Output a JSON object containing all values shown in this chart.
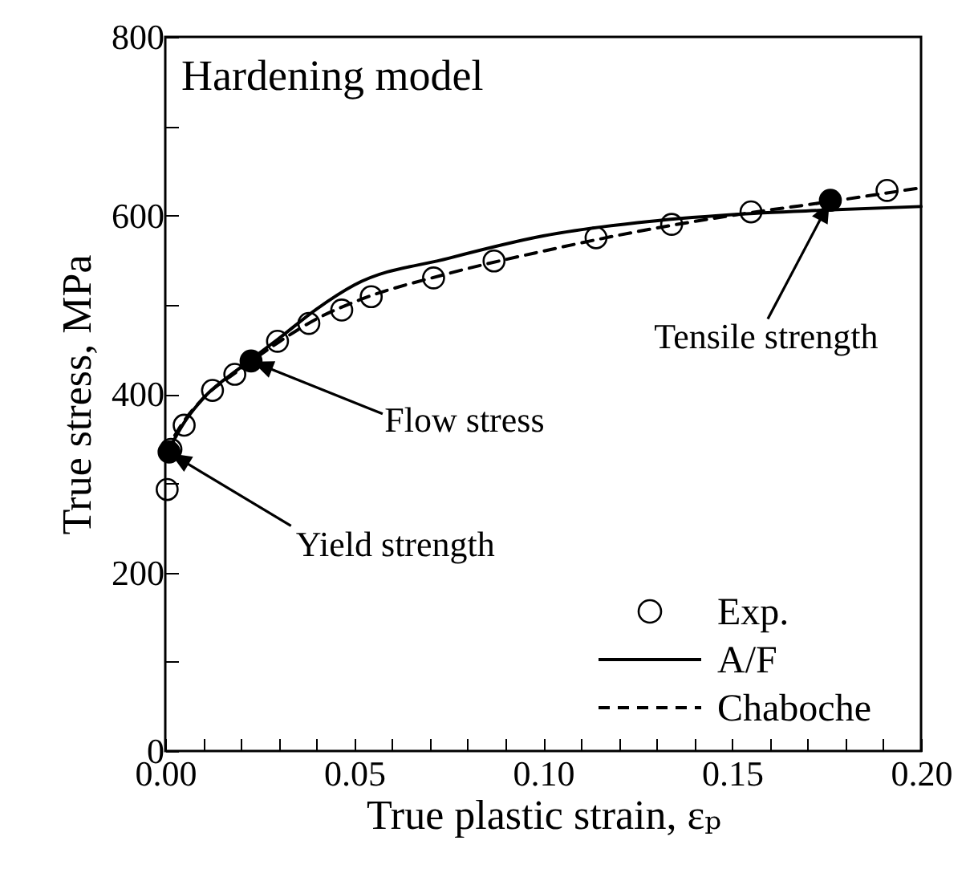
{
  "chart_data": {
    "type": "line",
    "title": "Hardening model",
    "xlabel": "True plastic strain, εₚ",
    "ylabel": "True stress, MPa",
    "xlim": [
      0,
      0.2
    ],
    "ylim": [
      0,
      800
    ],
    "xticks": [
      {
        "value": 0,
        "label": "0.00"
      },
      {
        "value": 0.01,
        "label": null
      },
      {
        "value": 0.02,
        "label": null
      },
      {
        "value": 0.03,
        "label": null
      },
      {
        "value": 0.04,
        "label": null
      },
      {
        "value": 0.05,
        "label": "0.05"
      },
      {
        "value": 0.06,
        "label": null
      },
      {
        "value": 0.07,
        "label": null
      },
      {
        "value": 0.08,
        "label": null
      },
      {
        "value": 0.09,
        "label": null
      },
      {
        "value": 0.1,
        "label": "0.10"
      },
      {
        "value": 0.11,
        "label": null
      },
      {
        "value": 0.12,
        "label": null
      },
      {
        "value": 0.13,
        "label": null
      },
      {
        "value": 0.14,
        "label": null
      },
      {
        "value": 0.15,
        "label": "0.15"
      },
      {
        "value": 0.16,
        "label": null
      },
      {
        "value": 0.17,
        "label": null
      },
      {
        "value": 0.18,
        "label": null
      },
      {
        "value": 0.19,
        "label": null
      },
      {
        "value": 0.2,
        "label": "0.20"
      }
    ],
    "yticks": [
      0,
      {
        "value": 100,
        "label": null
      },
      200,
      {
        "value": 300,
        "label": null
      },
      400,
      {
        "value": 500,
        "label": null
      },
      600,
      {
        "value": 700,
        "label": null
      },
      800
    ],
    "grid": false,
    "legend": "bottom right",
    "series": [
      {
        "name": "Exp.",
        "type": "scatter",
        "marker": "circle",
        "color": "#000000",
        "x": [
          0.0005,
          0.0015,
          0.005,
          0.0125,
          0.0184,
          0.0297,
          0.038,
          0.0467,
          0.0545,
          0.071,
          0.087,
          0.114,
          0.134,
          0.155,
          0.191
        ],
        "values": [
          293,
          338,
          365,
          404,
          422,
          459,
          479,
          494,
          509,
          530,
          549,
          575,
          590,
          604,
          628
        ]
      },
      {
        "name": "A/F",
        "type": "line",
        "line_style": "solid",
        "color": "#000000",
        "x": [
          0,
          0.005,
          0.01,
          0.02,
          0.03,
          0.04,
          0.05,
          0.075,
          0.1,
          0.125,
          0.15,
          0.175,
          0.2
        ],
        "values": [
          330,
          368,
          395,
          430,
          462,
          495,
          522,
          552,
          577,
          592,
          601,
          606,
          610
        ]
      },
      {
        "name": "Chaboche",
        "type": "line",
        "line_style": "dashed",
        "color": "#000000",
        "x": [
          0,
          0.005,
          0.01,
          0.02,
          0.03,
          0.04,
          0.05,
          0.075,
          0.1,
          0.125,
          0.15,
          0.175,
          0.2
        ],
        "values": [
          335,
          370,
          395,
          428,
          458,
          484,
          503,
          535,
          560,
          582,
          600,
          615,
          631
        ]
      },
      {
        "type": "scatter",
        "marker": "circle",
        "color": "#000000",
        "x": [
          0.001,
          0.0227,
          0.176
        ],
        "values": [
          335,
          437,
          617
        ]
      }
    ],
    "annotations": [
      "Yield strength",
      "Flow stress",
      "Tensile strength"
    ]
  }
}
